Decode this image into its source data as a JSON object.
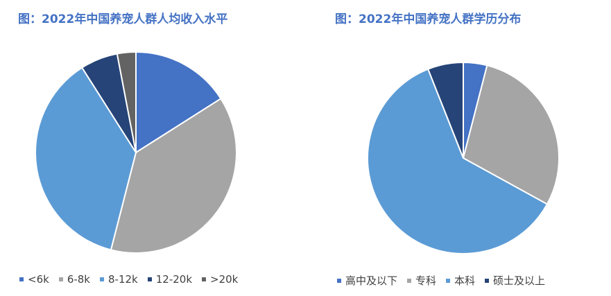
{
  "chart_data": [
    {
      "type": "pie",
      "title": "图：2022年中国养宠人群人均收入水平",
      "legend_position": "bottom",
      "categories": [
        "<6k",
        "6-8k",
        "8-12k",
        "12-20k",
        ">20k"
      ],
      "values": [
        16,
        38,
        37,
        6,
        3
      ],
      "colors": [
        "#4472c4",
        "#a5a5a5",
        "#5b9bd5",
        "#264478",
        "#636363"
      ]
    },
    {
      "type": "pie",
      "title": "图：2022年中国养宠人群学历分布",
      "legend_position": "bottom",
      "categories": [
        "高中及以下",
        "专科",
        "本科",
        "硕士及以上"
      ],
      "values": [
        4,
        29,
        61,
        6
      ],
      "colors": [
        "#4472c4",
        "#a5a5a5",
        "#5b9bd5",
        "#264478"
      ]
    }
  ]
}
